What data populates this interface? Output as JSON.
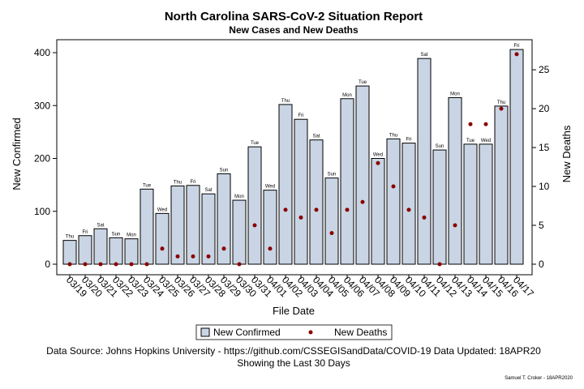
{
  "chart_data": {
    "type": "bar",
    "title": "North Carolina SARS-CoV-2 Situation Report",
    "subtitle": "New Cases and New Deaths",
    "xlabel": "File Date",
    "ylabel": "New Confirmed",
    "y2label": "New Deaths",
    "ylim": [
      0,
      420
    ],
    "y2lim": [
      0,
      28
    ],
    "yticks": [
      0,
      100,
      200,
      300,
      400
    ],
    "y2ticks": [
      0,
      5,
      10,
      15,
      20,
      25
    ],
    "grid": false,
    "legend_position": "bottom",
    "categories": [
      "03/19",
      "03/20",
      "03/21",
      "03/22",
      "03/23",
      "03/24",
      "03/25",
      "03/26",
      "03/27",
      "03/28",
      "03/29",
      "03/30",
      "03/31",
      "04/01",
      "04/02",
      "04/03",
      "04/04",
      "04/05",
      "04/06",
      "04/07",
      "04/08",
      "04/09",
      "04/10",
      "04/11",
      "04/12",
      "04/13",
      "04/14",
      "04/15",
      "04/16",
      "04/17"
    ],
    "day_labels": [
      "Thu",
      "Fri",
      "Sat",
      "Sun",
      "Mon",
      "Tue",
      "Wed",
      "Thu",
      "Fri",
      "Sat",
      "Sun",
      "Mon",
      "Tue",
      "Wed",
      "Thu",
      "Fri",
      "Sat",
      "Sun",
      "Mon",
      "Tue",
      "Wed",
      "Thu",
      "Fri",
      "Sat",
      "Sun",
      "Mon",
      "Tue",
      "Wed",
      "Thu",
      "Fri"
    ],
    "series": [
      {
        "name": "New Confirmed",
        "type": "bar",
        "values": [
          45,
          54,
          67,
          50,
          48,
          142,
          96,
          148,
          149,
          133,
          171,
          121,
          222,
          140,
          302,
          274,
          235,
          163,
          313,
          337,
          200,
          237,
          229,
          389,
          216,
          315,
          227,
          227,
          299,
          406
        ]
      },
      {
        "name": "New Deaths",
        "type": "scatter",
        "values": [
          0,
          0,
          0,
          0,
          0,
          0,
          2,
          1,
          1,
          1,
          2,
          0,
          5,
          2,
          7,
          6,
          7,
          4,
          7,
          8,
          13,
          10,
          7,
          6,
          0,
          5,
          18,
          18,
          20,
          27
        ]
      }
    ],
    "colors": {
      "bar_fill": "#c9d5e4",
      "bar_stroke": "#000000",
      "marker": "#8b0000"
    }
  },
  "legend": {
    "bar_label": "New Confirmed",
    "marker_label": "New Deaths"
  },
  "footnotes": {
    "source": "Data Source: Johns Hopkins University - https://github.com/CSSEGISandData/COVID-19 Data Updated: 18APR20",
    "window": "Showing the Last 30 Days"
  },
  "credit": "Samuel T. Croker - 18APR2020"
}
